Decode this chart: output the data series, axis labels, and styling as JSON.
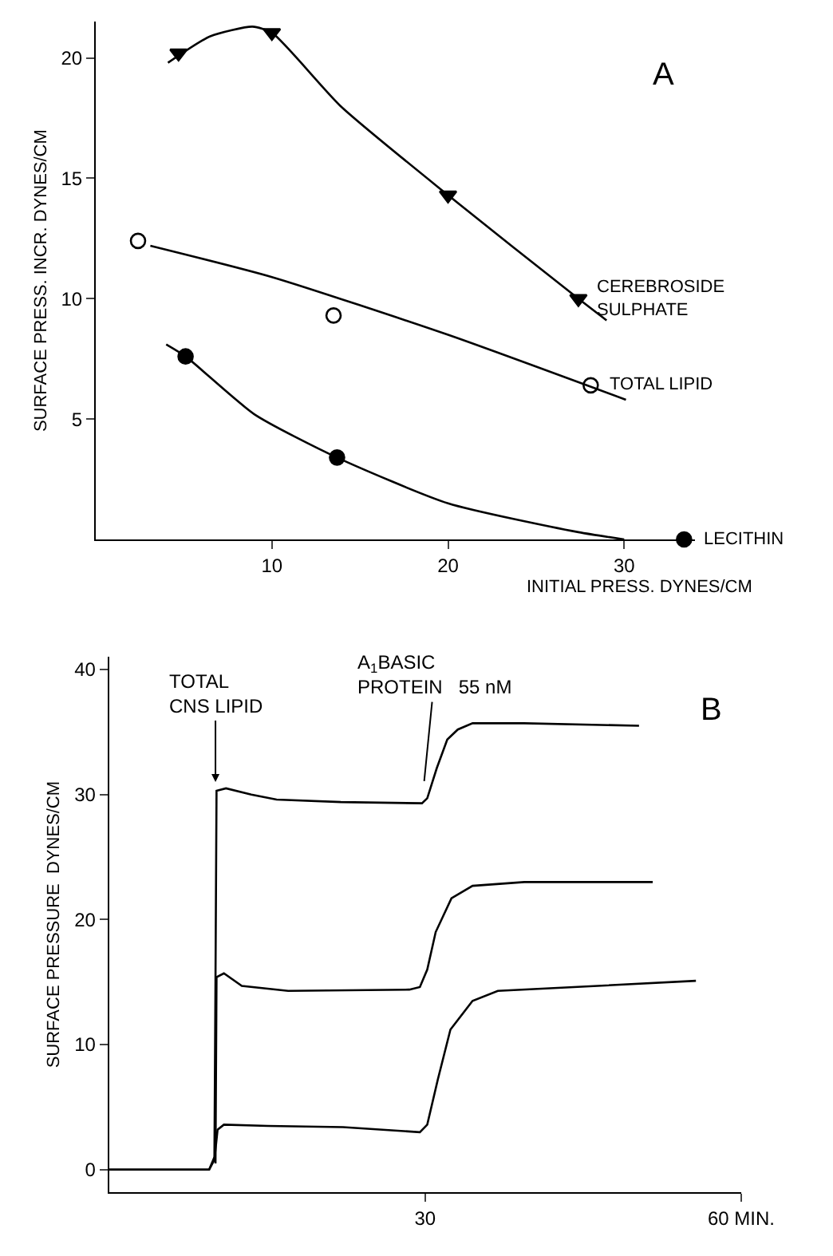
{
  "chart_data": [
    {
      "type": "scatter",
      "xlabel": "INITIAL PRESS. DYNES/CM",
      "ylabel": "SURFACE PRESS. INCR. DYNES/CM",
      "annotations": [
        "A"
      ],
      "xlim": [
        0,
        34
      ],
      "ylim": [
        0,
        21.5
      ],
      "xticks": [
        10,
        20,
        30
      ],
      "yticks": [
        5,
        10,
        15,
        20
      ],
      "series": [
        {
          "name": "CEREBROSIDE\nSULPHATE",
          "type": "scatter",
          "marker": "triangle-down",
          "color": "#000000",
          "x": [
            4.7,
            10,
            20,
            27.4
          ],
          "values": [
            20.2,
            21.05,
            14.3,
            10.0
          ]
        },
        {
          "name": "TOTAL LIPID",
          "type": "scatter",
          "marker": "circle-open",
          "color": "#000000",
          "x": [
            2.4,
            13.5,
            28.1
          ],
          "values": [
            12.4,
            9.3,
            6.4
          ]
        },
        {
          "name": "LECITHIN",
          "type": "scatter",
          "marker": "circle",
          "color": "#000000",
          "x": [
            5.1,
            13.7,
            33.4
          ],
          "values": [
            7.6,
            3.4,
            0
          ]
        },
        {
          "type": "line",
          "marker": "none",
          "color": "#000000",
          "x": [
            4.1,
            6.5,
            8.9,
            10,
            13.9,
            20,
            27.4,
            29.0
          ],
          "values": [
            19.8,
            20.9,
            21.3,
            21.05,
            18.0,
            14.3,
            10.0,
            9.1
          ]
        },
        {
          "type": "line",
          "marker": "none",
          "color": "#000000",
          "x": [
            3.1,
            10,
            20,
            30.1
          ],
          "values": [
            12.2,
            10.9,
            8.5,
            5.8
          ]
        },
        {
          "type": "line",
          "marker": "none",
          "color": "#000000",
          "x": [
            4.0,
            5.1,
            9,
            13.7,
            20,
            27.4,
            30.0
          ],
          "values": [
            8.1,
            7.6,
            5.2,
            3.4,
            1.5,
            0.3,
            0
          ]
        }
      ]
    },
    {
      "type": "line",
      "ylabel": "SURFACE PRESSURE  DYNES/CM",
      "marker": "none",
      "annotations": [
        "B",
        {
          "text": "TOTAL\nCNS LIPID",
          "x": 10.1,
          "y": 31
        },
        {
          "text": "A$_{1}$BASIC\nPROTEIN   55 nM",
          "x": 29.7,
          "y": 29.3
        }
      ],
      "xlim": [
        0,
        60
      ],
      "ylim": [
        -1.8,
        41
      ],
      "xticks": [
        30,
        {
          "value": 60,
          "label": "60 MIN."
        }
      ],
      "yticks": [
        0,
        10,
        20,
        30,
        40
      ],
      "series": [
        {
          "color": "#000000",
          "x": [
            0,
            9.5,
            10.0,
            10.1,
            10.2,
            11.1,
            13.5,
            15.9,
            22,
            29.7,
            30.2,
            31.1,
            32.1,
            33.1,
            34.5,
            39.4,
            50.3
          ],
          "values": [
            0,
            0,
            1,
            15,
            30.3,
            30.5,
            30.0,
            29.6,
            29.4,
            29.3,
            29.7,
            32.1,
            34.4,
            35.2,
            35.7,
            35.7,
            35.5
          ]
        },
        {
          "color": "#000000",
          "x": [
            10.1,
            10.2,
            10.9,
            12.6,
            17.0,
            28.5,
            29.5,
            30.2,
            31.0,
            32.5,
            34.5,
            39.4,
            51.6
          ],
          "values": [
            0.5,
            15.4,
            15.7,
            14.7,
            14.3,
            14.4,
            14.6,
            16.0,
            19.0,
            21.7,
            22.7,
            23.0,
            23.0
          ]
        },
        {
          "color": "#000000",
          "x": [
            0,
            9.5,
            10.0,
            10.3,
            10.9,
            15.1,
            22.2,
            29.5,
            30.2,
            31.2,
            32.4,
            34.5,
            36.9,
            44.1,
            55.7
          ],
          "values": [
            0,
            0,
            0.8,
            3.2,
            3.6,
            3.5,
            3.4,
            3.0,
            3.6,
            7.2,
            11.2,
            13.5,
            14.3,
            14.6,
            15.1
          ]
        }
      ]
    }
  ]
}
